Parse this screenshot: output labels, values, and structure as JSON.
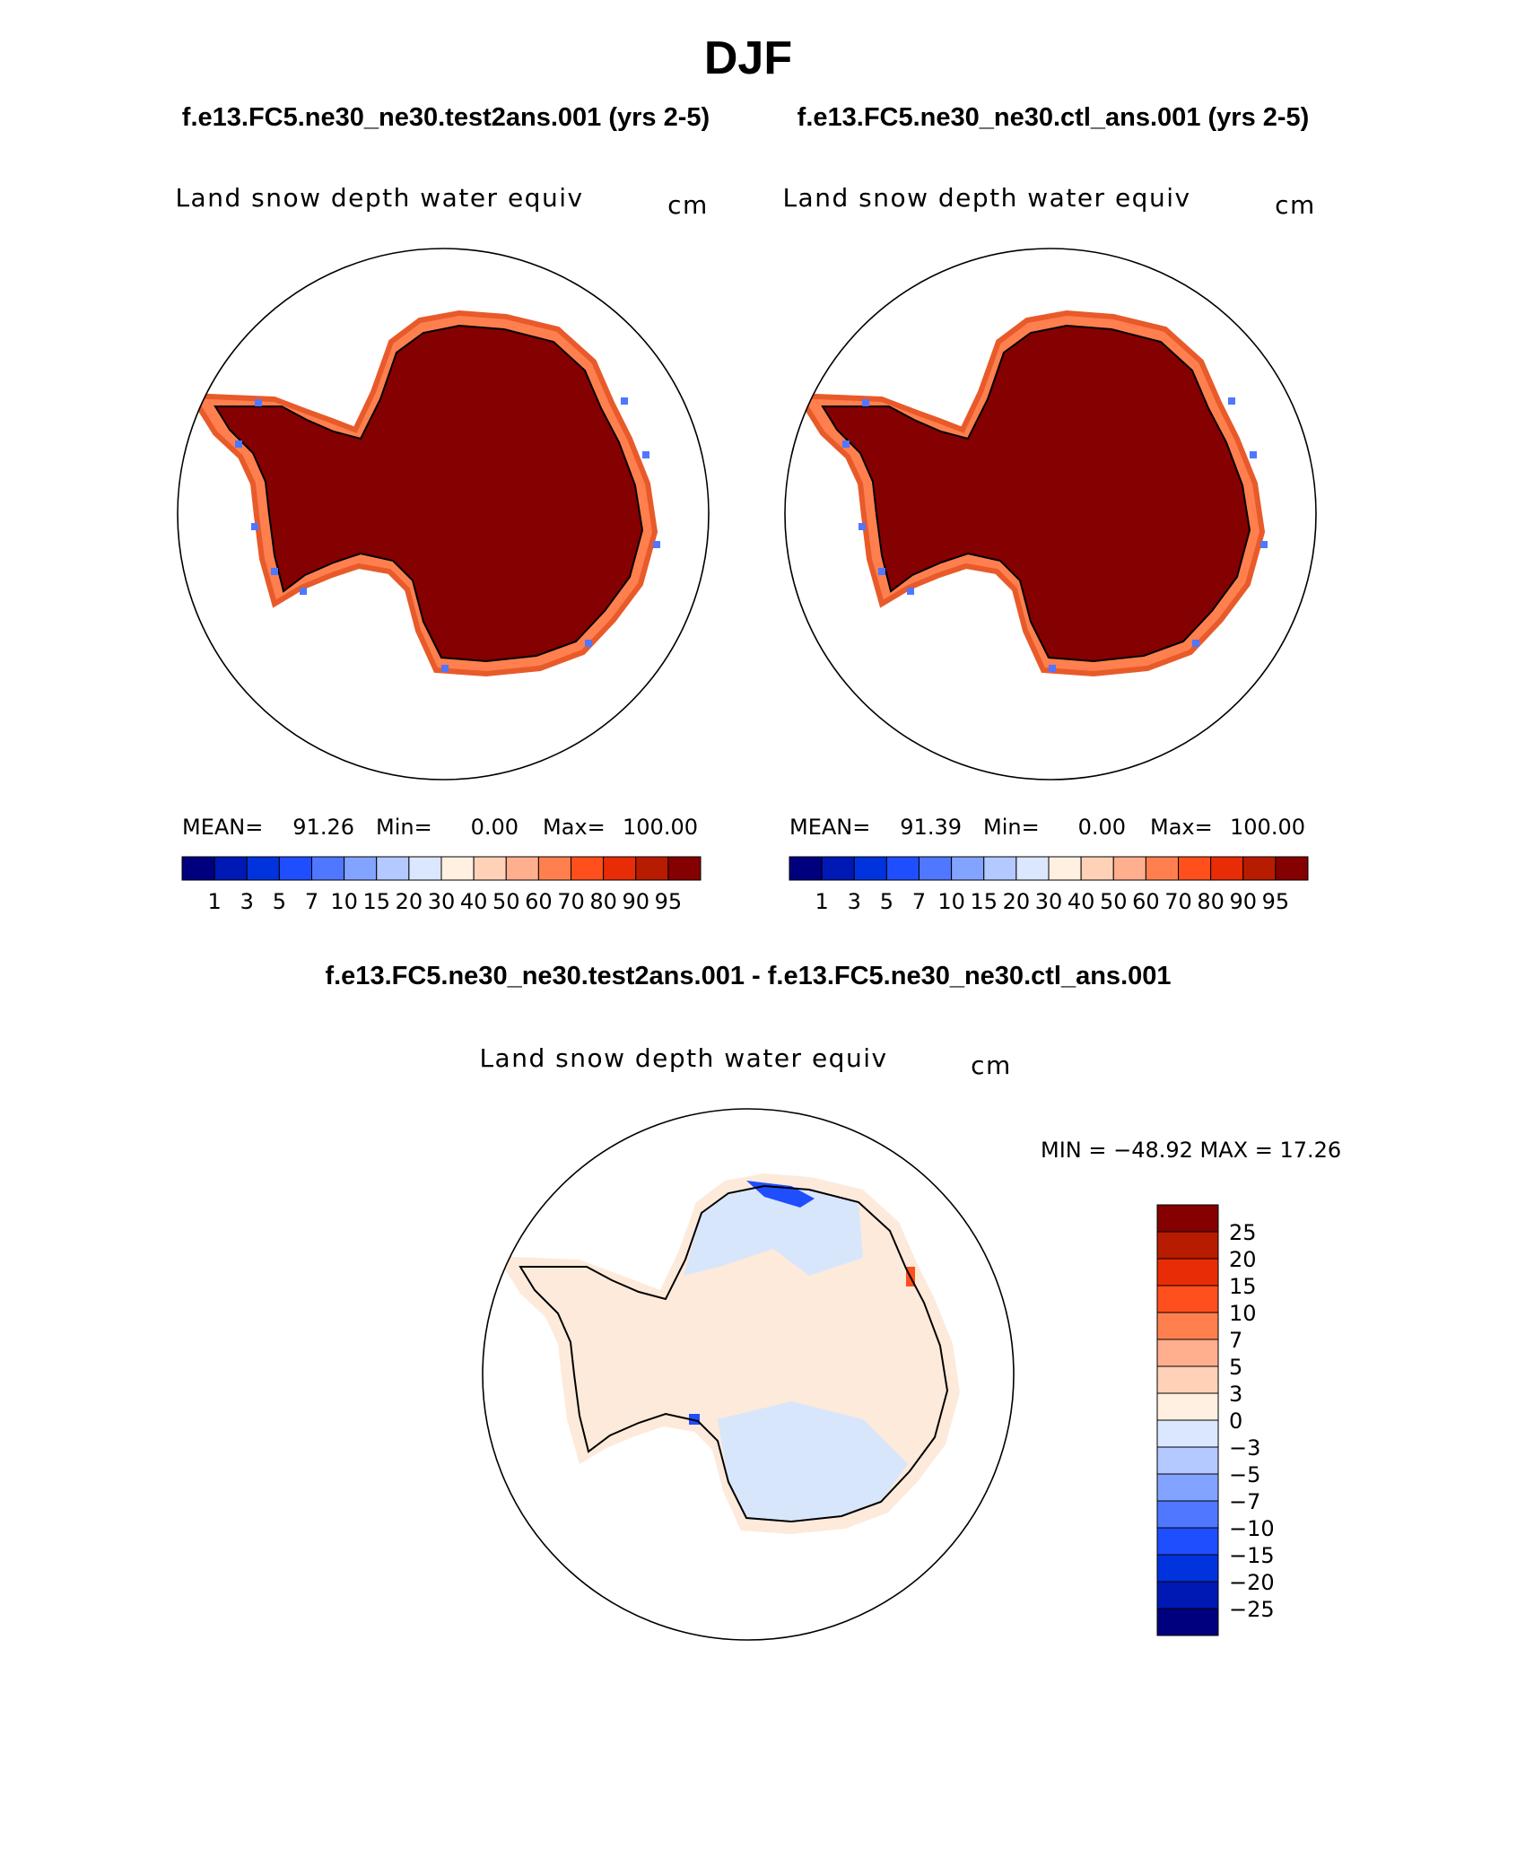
{
  "season": "DJF",
  "colors": {
    "snow_scale": [
      "#00007f",
      "#0019b4",
      "#0033dd",
      "#1f4eff",
      "#4f77ff",
      "#82a3ff",
      "#b3c9ff",
      "#dbe7ff",
      "#fff0e1",
      "#ffd2b8",
      "#ffae8e",
      "#ff7f4f",
      "#ff4f1c",
      "#e82c05",
      "#b81c00",
      "#850000"
    ],
    "diff_scale": [
      "#00007f",
      "#0019b4",
      "#0033dd",
      "#1f4eff",
      "#4f77ff",
      "#82a3ff",
      "#b3c9ff",
      "#dbe7ff",
      "#fff0e1",
      "#ffd2b8",
      "#ffae8e",
      "#ff7f4f",
      "#ff4f1c",
      "#e82c05",
      "#b81c00",
      "#850000"
    ],
    "land_full": "#850000",
    "diff_pos": "#fdeadb",
    "diff_neg": "#d8e6fb"
  },
  "panels": [
    {
      "case": "f.e13.FC5.ne30_ne30.test2ans.001 (yrs 2-5)",
      "variable": "Land snow depth water equiv",
      "units": "cm",
      "stats": {
        "mean_label": "MEAN=",
        "mean": "91.26",
        "min_label": "Min=",
        "min": "0.00",
        "max_label": "Max=",
        "max": "100.00"
      },
      "colorbar_labels": [
        "1",
        "3",
        "5",
        "7",
        "10",
        "15",
        "20",
        "30",
        "40",
        "50",
        "60",
        "70",
        "80",
        "90",
        "95"
      ]
    },
    {
      "case": "f.e13.FC5.ne30_ne30.ctl_ans.001 (yrs 2-5)",
      "variable": "Land snow depth water equiv",
      "units": "cm",
      "stats": {
        "mean_label": "MEAN=",
        "mean": "91.39",
        "min_label": "Min=",
        "min": "0.00",
        "max_label": "Max=",
        "max": "100.00"
      },
      "colorbar_labels": [
        "1",
        "3",
        "5",
        "7",
        "10",
        "15",
        "20",
        "30",
        "40",
        "50",
        "60",
        "70",
        "80",
        "90",
        "95"
      ]
    }
  ],
  "difference": {
    "title": "f.e13.FC5.ne30_ne30.test2ans.001 - f.e13.FC5.ne30_ne30.ctl_ans.001",
    "variable": "Land snow depth water equiv",
    "units": "cm",
    "minmax": "MIN = −48.92 MAX =   17.26",
    "colorbar_labels": [
      "25",
      "20",
      "15",
      "10",
      "7",
      "5",
      "3",
      "0",
      "−3",
      "−5",
      "−7",
      "−10",
      "−15",
      "−20",
      "−25"
    ]
  }
}
